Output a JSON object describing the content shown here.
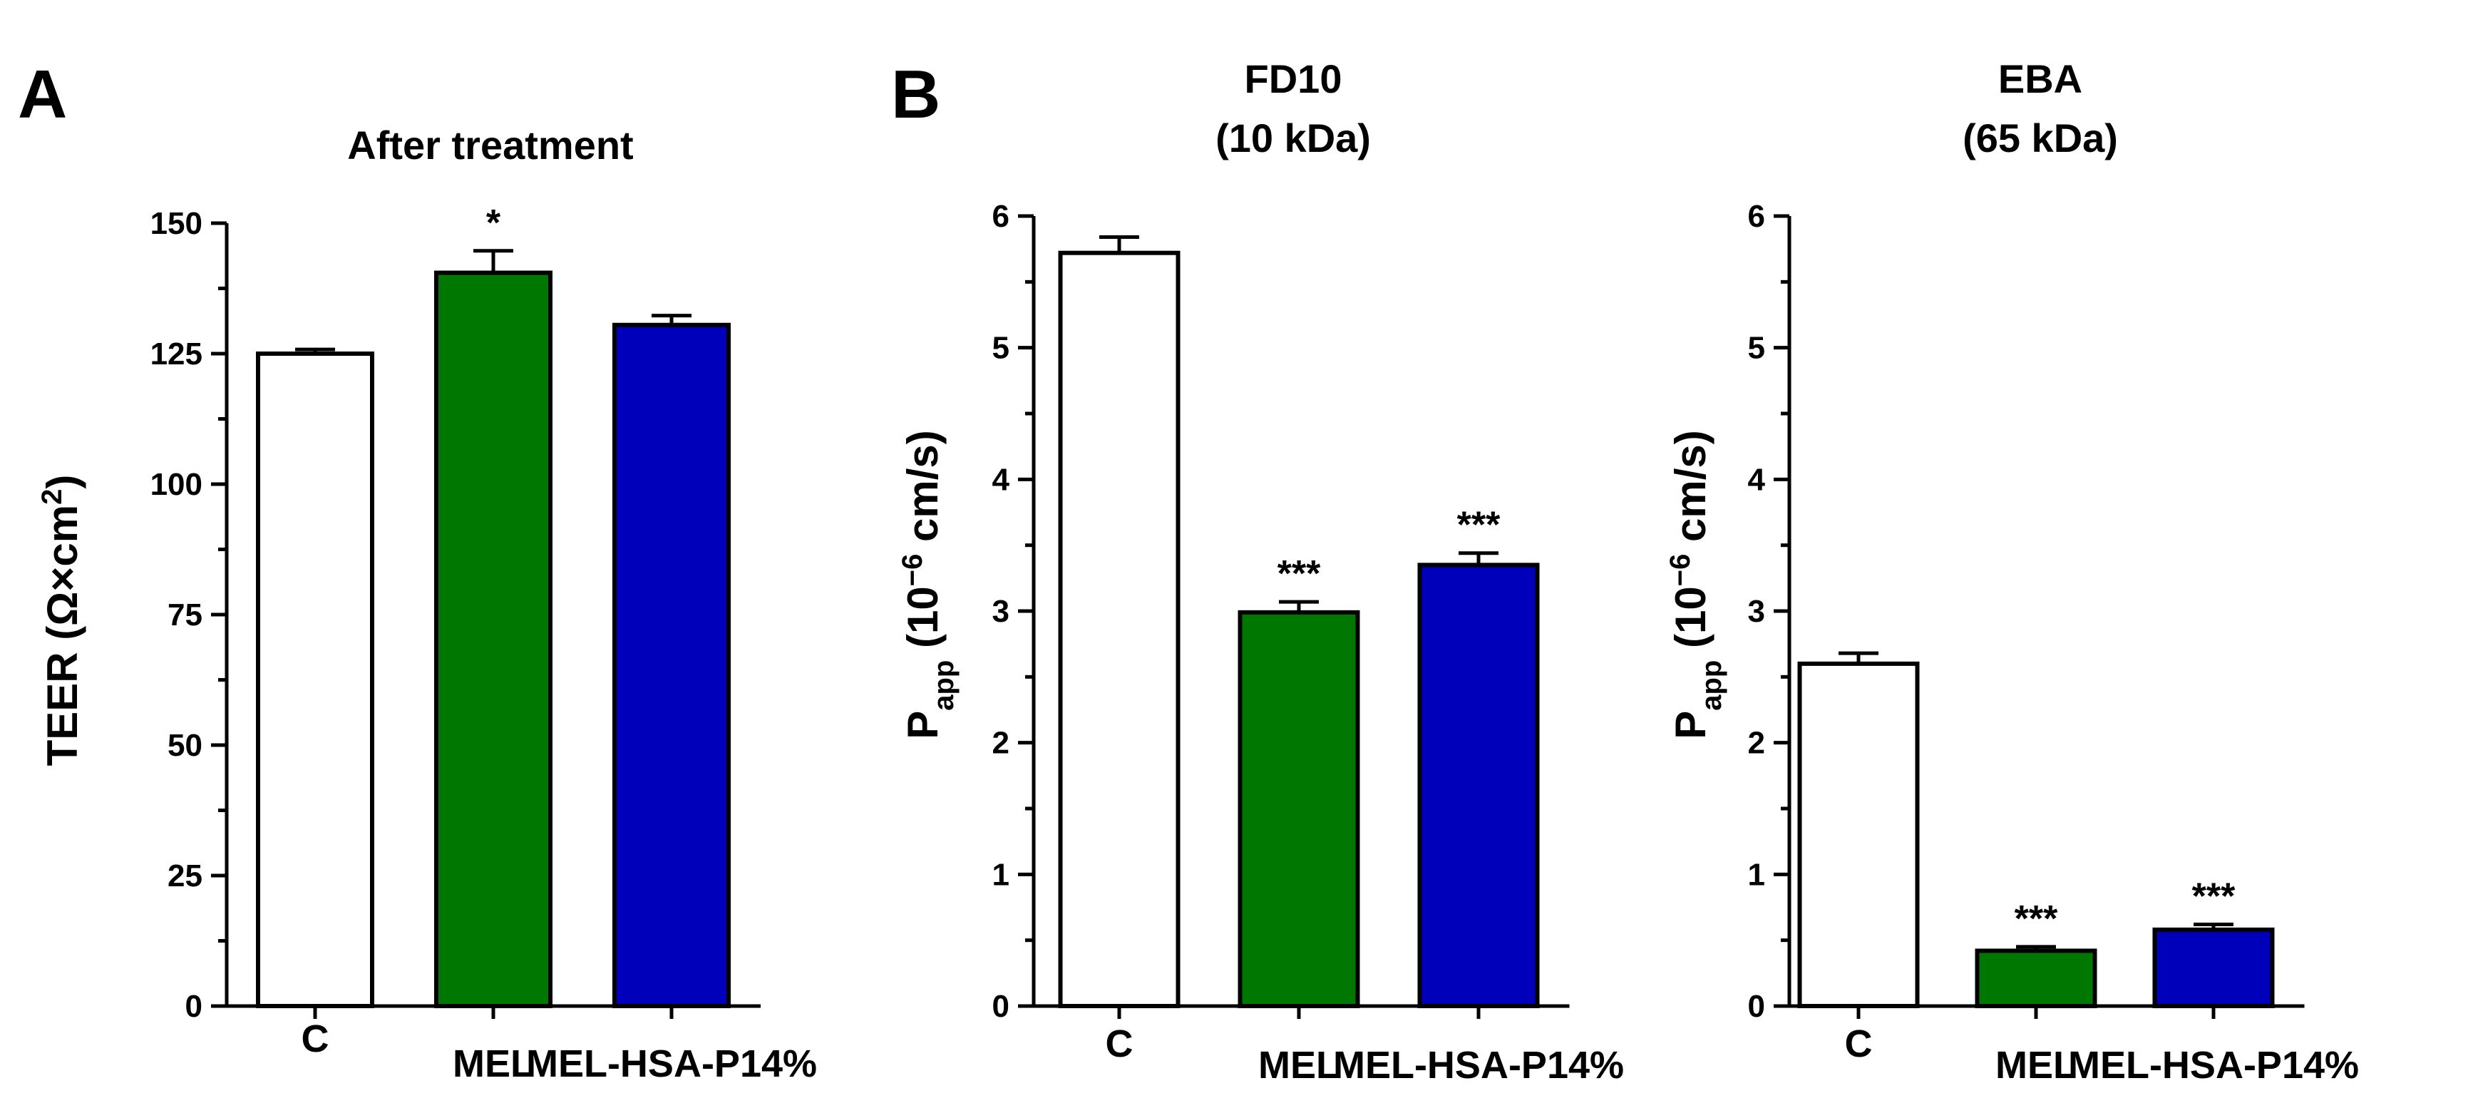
{
  "chart_data": [
    {
      "panel_label": "A",
      "type": "bar",
      "title": "After treatment",
      "ylabel": "TEER (Ω×cm²)",
      "ylabel_parts": {
        "main": "TEER (Ω×cm",
        "sup": "2",
        "end": ")"
      },
      "categories": [
        "C",
        "MEL",
        "MEL-HSA-P14%"
      ],
      "values": [
        125,
        140.5,
        130.5
      ],
      "errors": [
        0.8,
        4.2,
        1.8
      ],
      "significance": [
        "",
        "*",
        ""
      ],
      "colors": [
        "#ffffff",
        "#007700",
        "#0000bb"
      ],
      "ylim": [
        0,
        150
      ],
      "yticks": [
        0,
        25,
        50,
        75,
        100,
        125,
        150
      ],
      "yticklabels": [
        "0",
        "25",
        "50",
        "75",
        "100",
        "125",
        "150"
      ]
    },
    {
      "panel_label": "B",
      "type": "bar",
      "title": "FD10",
      "subtitle": "(10 kDa)",
      "ylabel": "Papp (10⁻⁶ cm/s)",
      "ylabel_parts": {
        "main": "P",
        "sub": "app",
        "mid": " (10",
        "sup": "−6",
        "end": " cm/s)"
      },
      "categories": [
        "C",
        "MEL",
        "MEL-HSA-P14%"
      ],
      "values": [
        5.72,
        2.99,
        3.35
      ],
      "errors": [
        0.12,
        0.08,
        0.09
      ],
      "significance": [
        "",
        "***",
        "***"
      ],
      "colors": [
        "#ffffff",
        "#007700",
        "#0000bb"
      ],
      "ylim": [
        0,
        6
      ],
      "yticks": [
        0,
        1,
        2,
        3,
        4,
        5,
        6
      ],
      "yticklabels": [
        "0",
        "1",
        "2",
        "3",
        "4",
        "5",
        "6"
      ]
    },
    {
      "panel_label": "",
      "type": "bar",
      "title": "EBA",
      "subtitle": "(65 kDa)",
      "ylabel": "Papp (10⁻⁶ cm/s)",
      "ylabel_parts": {
        "main": "P",
        "sub": "app",
        "mid": " (10",
        "sup": "−6",
        "end": " cm/s)"
      },
      "categories": [
        "C",
        "MEL",
        "MEL-HSA-P14%"
      ],
      "values": [
        2.6,
        0.42,
        0.58
      ],
      "errors": [
        0.08,
        0.03,
        0.04
      ],
      "significance": [
        "",
        "***",
        "***"
      ],
      "colors": [
        "#ffffff",
        "#007700",
        "#0000bb"
      ],
      "ylim": [
        0,
        6
      ],
      "yticks": [
        0,
        1,
        2,
        3,
        4,
        5,
        6
      ],
      "yticklabels": [
        "0",
        "1",
        "2",
        "3",
        "4",
        "5",
        "6"
      ]
    }
  ]
}
